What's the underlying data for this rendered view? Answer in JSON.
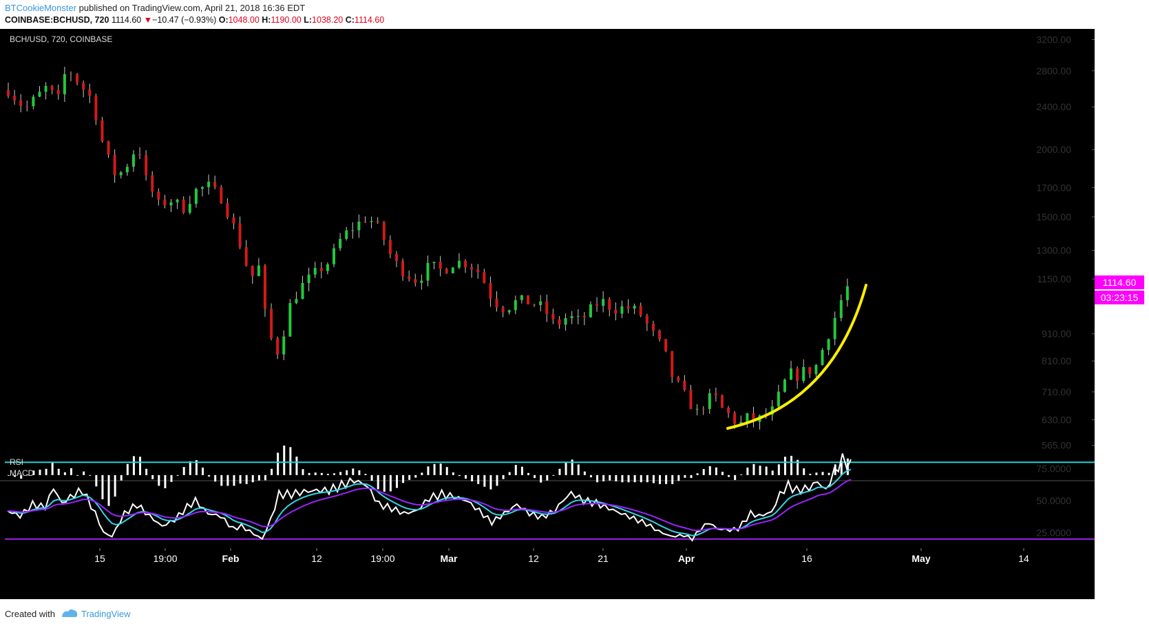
{
  "header": {
    "author": "BTCookieMonster",
    "published_text": "published on TradingView.com, April 21, 2018 16:36 EDT",
    "symbol_line": "COINBASE:BCHUSD, 720",
    "last": "1114.60",
    "change_arrow": "▼",
    "change": "−10.47 (−0.93%)",
    "open_label": "O:",
    "open": "1048.00",
    "high_label": "H:",
    "high": "1190.00",
    "low_label": "L:",
    "low": "1038.20",
    "close_label": "C:",
    "close": "1114.60"
  },
  "colors": {
    "background": "#000000",
    "up": "#22c93c",
    "down": "#d11a1a",
    "arc": "#ffee00",
    "price_tag": "#ff00ff",
    "rsi_line": "#ffffff",
    "fast_line": "#33d6e8",
    "slow_line": "#9b24ff",
    "band_high": "#22d3d3",
    "band_low": "#a020f0",
    "histogram": "#ffffff"
  },
  "panel": {
    "main_label": "BCH/USD, 720, COINBASE",
    "rsi_label": "RSI",
    "macd_label": "MACD",
    "price_tag": "1114.60",
    "countdown": "03:23:15"
  },
  "footer": {
    "created_with": "Created with",
    "brand": "TradingView"
  },
  "chart_data": {
    "type": "candlestick",
    "scale": "log",
    "ylim": [
      540,
      3300
    ],
    "y_ticks": [
      3200,
      2800,
      2400,
      2000,
      1700,
      1500,
      1300,
      1150,
      910,
      810,
      710,
      630,
      565
    ],
    "y_tick_labels": [
      "3200.00",
      "2800.00",
      "2400.00",
      "2000.00",
      "1700.00",
      "1500.00",
      "1300.00",
      "1150.00",
      "910.00",
      "810.00",
      "710.00",
      "630.00",
      "565.00"
    ],
    "x_labels": [
      "15",
      "19:00",
      "Feb",
      "12",
      "19:00",
      "Mar",
      "12",
      "21",
      "Apr",
      "16",
      "May",
      "14"
    ],
    "bold_x_labels": [
      "Feb",
      "Mar",
      "Apr",
      "May"
    ],
    "anchors": [
      [
        0,
        2580
      ],
      [
        8,
        2380
      ],
      [
        18,
        2600
      ],
      [
        24,
        2480
      ],
      [
        28,
        2840
      ],
      [
        34,
        2650
      ],
      [
        40,
        2480
      ],
      [
        46,
        1990
      ],
      [
        52,
        1770
      ],
      [
        58,
        1900
      ],
      [
        62,
        2050
      ],
      [
        66,
        1760
      ],
      [
        72,
        1580
      ],
      [
        78,
        1610
      ],
      [
        84,
        1560
      ],
      [
        90,
        1680
      ],
      [
        96,
        1710
      ],
      [
        102,
        1630
      ],
      [
        108,
        1440
      ],
      [
        112,
        1300
      ],
      [
        116,
        1150
      ],
      [
        120,
        1210
      ],
      [
        124,
        920
      ],
      [
        130,
        830
      ],
      [
        134,
        1010
      ],
      [
        140,
        1110
      ],
      [
        146,
        1170
      ],
      [
        154,
        1240
      ],
      [
        160,
        1380
      ],
      [
        166,
        1440
      ],
      [
        172,
        1500
      ],
      [
        178,
        1420
      ],
      [
        184,
        1250
      ],
      [
        190,
        1180
      ],
      [
        196,
        1140
      ],
      [
        202,
        1220
      ],
      [
        208,
        1190
      ],
      [
        214,
        1240
      ],
      [
        220,
        1230
      ],
      [
        226,
        1180
      ],
      [
        232,
        1050
      ],
      [
        238,
        1010
      ],
      [
        244,
        1050
      ],
      [
        250,
        1040
      ],
      [
        256,
        1020
      ],
      [
        262,
        940
      ],
      [
        268,
        980
      ],
      [
        274,
        960
      ],
      [
        278,
        1000
      ],
      [
        284,
        1050
      ],
      [
        290,
        1010
      ],
      [
        296,
        1020
      ],
      [
        302,
        1000
      ],
      [
        308,
        920
      ],
      [
        314,
        850
      ],
      [
        318,
        760
      ],
      [
        322,
        720
      ],
      [
        326,
        680
      ],
      [
        330,
        650
      ],
      [
        334,
        680
      ],
      [
        338,
        700
      ],
      [
        342,
        660
      ],
      [
        346,
        640
      ],
      [
        350,
        615
      ],
      [
        354,
        635
      ],
      [
        358,
        625
      ],
      [
        362,
        640
      ],
      [
        366,
        655
      ],
      [
        370,
        710
      ],
      [
        374,
        770
      ],
      [
        378,
        760
      ],
      [
        382,
        780
      ],
      [
        386,
        775
      ],
      [
        390,
        850
      ],
      [
        394,
        930
      ],
      [
        398,
        1020
      ],
      [
        402,
        1140
      ],
      [
        404,
        1110
      ]
    ],
    "candle_count": 405,
    "last_close": 1114.6,
    "rsi": {
      "ylim": [
        15,
        85
      ],
      "ticks": [
        75,
        50,
        25
      ],
      "tick_labels": [
        "75.0000",
        "50.0000",
        "25.0000"
      ],
      "upper_band": 80,
      "lower_band": 20,
      "anchors": [
        [
          0,
          42
        ],
        [
          6,
          38
        ],
        [
          12,
          47
        ],
        [
          18,
          45
        ],
        [
          22,
          60
        ],
        [
          26,
          48
        ],
        [
          32,
          55
        ],
        [
          36,
          58
        ],
        [
          42,
          40
        ],
        [
          46,
          25
        ],
        [
          50,
          22
        ],
        [
          56,
          40
        ],
        [
          62,
          47
        ],
        [
          68,
          38
        ],
        [
          74,
          30
        ],
        [
          80,
          35
        ],
        [
          86,
          45
        ],
        [
          90,
          50
        ],
        [
          96,
          40
        ],
        [
          102,
          38
        ],
        [
          108,
          28
        ],
        [
          112,
          30
        ],
        [
          118,
          24
        ],
        [
          122,
          20
        ],
        [
          126,
          35
        ],
        [
          130,
          55
        ],
        [
          136,
          55
        ],
        [
          142,
          57
        ],
        [
          148,
          58
        ],
        [
          154,
          58
        ],
        [
          160,
          62
        ],
        [
          166,
          66
        ],
        [
          172,
          62
        ],
        [
          178,
          47
        ],
        [
          184,
          44
        ],
        [
          190,
          40
        ],
        [
          196,
          42
        ],
        [
          202,
          52
        ],
        [
          208,
          55
        ],
        [
          214,
          53
        ],
        [
          220,
          50
        ],
        [
          226,
          42
        ],
        [
          232,
          33
        ],
        [
          238,
          40
        ],
        [
          244,
          47
        ],
        [
          250,
          40
        ],
        [
          256,
          37
        ],
        [
          262,
          42
        ],
        [
          266,
          50
        ],
        [
          270,
          56
        ],
        [
          276,
          50
        ],
        [
          282,
          48
        ],
        [
          288,
          44
        ],
        [
          294,
          40
        ],
        [
          300,
          36
        ],
        [
          306,
          32
        ],
        [
          312,
          26
        ],
        [
          318,
          22
        ],
        [
          324,
          23
        ],
        [
          328,
          20
        ],
        [
          332,
          28
        ],
        [
          336,
          33
        ],
        [
          340,
          28
        ],
        [
          346,
          27
        ],
        [
          350,
          28
        ],
        [
          356,
          40
        ],
        [
          360,
          38
        ],
        [
          366,
          41
        ],
        [
          370,
          55
        ],
        [
          374,
          62
        ],
        [
          378,
          58
        ],
        [
          384,
          60
        ],
        [
          388,
          65
        ],
        [
          392,
          58
        ],
        [
          396,
          72
        ],
        [
          400,
          82
        ],
        [
          404,
          78
        ]
      ]
    }
  }
}
